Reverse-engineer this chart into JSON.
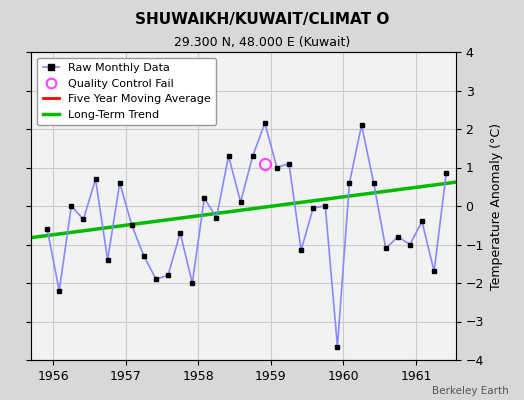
{
  "title": "SHUWAIKH/KUWAIT/CLIMAT O",
  "subtitle": "29.300 N, 48.000 E (Kuwait)",
  "ylabel": "Temperature Anomaly (°C)",
  "credit": "Berkeley Earth",
  "xlim": [
    1955.7,
    1961.55
  ],
  "ylim": [
    -4,
    4
  ],
  "yticks": [
    -4,
    -3,
    -2,
    -1,
    0,
    1,
    2,
    3,
    4
  ],
  "xticks": [
    1956,
    1957,
    1958,
    1959,
    1960,
    1961
  ],
  "bg_color": "#d8d8d8",
  "plot_bg_color": "#f2f2f2",
  "raw_x": [
    1955.917,
    1956.083,
    1956.25,
    1956.417,
    1956.583,
    1956.75,
    1956.917,
    1957.083,
    1957.25,
    1957.417,
    1957.583,
    1957.75,
    1957.917,
    1958.083,
    1958.25,
    1958.417,
    1958.583,
    1958.75,
    1958.917,
    1959.083,
    1959.25,
    1959.417,
    1959.583,
    1959.75,
    1959.917,
    1960.083,
    1960.25,
    1960.417,
    1960.583,
    1960.75,
    1960.917,
    1961.083,
    1961.25,
    1961.417
  ],
  "raw_y": [
    -0.6,
    -2.2,
    0.0,
    -0.35,
    0.7,
    -1.4,
    0.6,
    -0.5,
    -1.3,
    -1.9,
    -1.8,
    -0.7,
    -2.0,
    0.2,
    -0.3,
    1.3,
    0.1,
    1.3,
    2.15,
    1.0,
    1.1,
    -1.15,
    -0.05,
    0.0,
    -3.65,
    0.6,
    2.1,
    0.6,
    -1.1,
    -0.8,
    -1.0,
    -0.4,
    -1.7,
    0.85
  ],
  "qc_fail_x": [
    1958.917
  ],
  "qc_fail_y": [
    1.1
  ],
  "trend_x": [
    1955.7,
    1961.55
  ],
  "trend_y": [
    -0.82,
    0.62
  ],
  "raw_line_color": "#8888ff",
  "raw_dot_color": "#000000",
  "qc_color": "#ff44ff",
  "trend_color": "#00bb00",
  "mavg_color": "#ff0000",
  "grid_color": "#cccccc",
  "legend_fontsize": 8,
  "title_fontsize": 11,
  "subtitle_fontsize": 9
}
